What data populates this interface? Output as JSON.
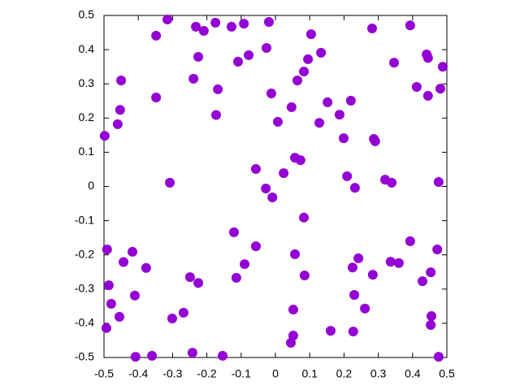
{
  "chart_data": {
    "type": "scatter",
    "color": "#9400d3",
    "xlim": [
      -0.5,
      0.5
    ],
    "ylim": [
      -0.5,
      0.5
    ],
    "xticks": [
      -0.5,
      -0.4,
      -0.3,
      -0.2,
      -0.1,
      0,
      0.1,
      0.2,
      0.3,
      0.4,
      0.5
    ],
    "yticks": [
      -0.5,
      -0.4,
      -0.3,
      -0.2,
      -0.1,
      0,
      0.1,
      0.2,
      0.3,
      0.4,
      0.5
    ],
    "grid": false,
    "x": [
      -0.498,
      -0.315,
      -0.348,
      -0.232,
      -0.209,
      -0.175,
      -0.128,
      -0.092,
      -0.019,
      0.104,
      0.282,
      0.393,
      -0.225,
      -0.109,
      -0.078,
      -0.026,
      0.095,
      0.133,
      0.346,
      0.441,
      0.445,
      0.488,
      -0.45,
      -0.239,
      -0.168,
      0.083,
      0.064,
      -0.012,
      0.412,
      0.481,
      0.445,
      -0.348,
      -0.453,
      -0.46,
      -0.173,
      0.007,
      0.047,
      0.152,
      0.22,
      0.187,
      0.128,
      0.199,
      0.287,
      0.291,
      0.057,
      0.073,
      -0.057,
      0.024,
      0.209,
      0.32,
      0.339,
      0.476,
      -0.308,
      0.232,
      -0.028,
      -0.009,
      0.083,
      -0.121,
      0.393,
      -0.491,
      -0.417,
      0.472,
      -0.057,
      0.057,
      -0.443,
      0.242,
      0.336,
      0.36,
      -0.09,
      -0.377,
      0.225,
      0.453,
      0.085,
      0.284,
      -0.249,
      -0.114,
      -0.225,
      0.429,
      -0.486,
      -0.41,
      0.23,
      -0.479,
      0.261,
      0.052,
      -0.268,
      -0.301,
      -0.455,
      0.455,
      0.453,
      -0.493,
      0.161,
      0.227,
      0.052,
      0.045,
      -0.408,
      -0.36,
      -0.242,
      -0.154,
      0.476
    ],
    "values": [
      0.148,
      0.488,
      0.441,
      0.467,
      0.455,
      0.479,
      0.467,
      0.476,
      0.481,
      0.445,
      0.462,
      0.471,
      0.379,
      0.365,
      0.384,
      0.405,
      0.372,
      0.391,
      0.362,
      0.386,
      0.376,
      0.35,
      0.31,
      0.315,
      0.284,
      0.336,
      0.31,
      0.272,
      0.291,
      0.286,
      0.265,
      0.26,
      0.224,
      0.182,
      0.209,
      0.189,
      0.232,
      0.246,
      0.251,
      0.21,
      0.186,
      0.141,
      0.139,
      0.132,
      0.084,
      0.077,
      0.051,
      0.039,
      0.03,
      0.02,
      0.011,
      0.013,
      0.011,
      -0.004,
      -0.006,
      -0.032,
      -0.091,
      -0.134,
      -0.16,
      -0.184,
      -0.191,
      -0.184,
      -0.175,
      -0.198,
      -0.221,
      -0.21,
      -0.22,
      -0.224,
      -0.227,
      -0.238,
      -0.237,
      -0.251,
      -0.26,
      -0.258,
      -0.265,
      -0.267,
      -0.282,
      -0.277,
      -0.289,
      -0.319,
      -0.317,
      -0.343,
      -0.357,
      -0.36,
      -0.369,
      -0.386,
      -0.381,
      -0.379,
      -0.405,
      -0.414,
      -0.422,
      -0.424,
      -0.436,
      -0.457,
      -0.498,
      -0.495,
      -0.486,
      -0.495,
      -0.498
    ]
  }
}
